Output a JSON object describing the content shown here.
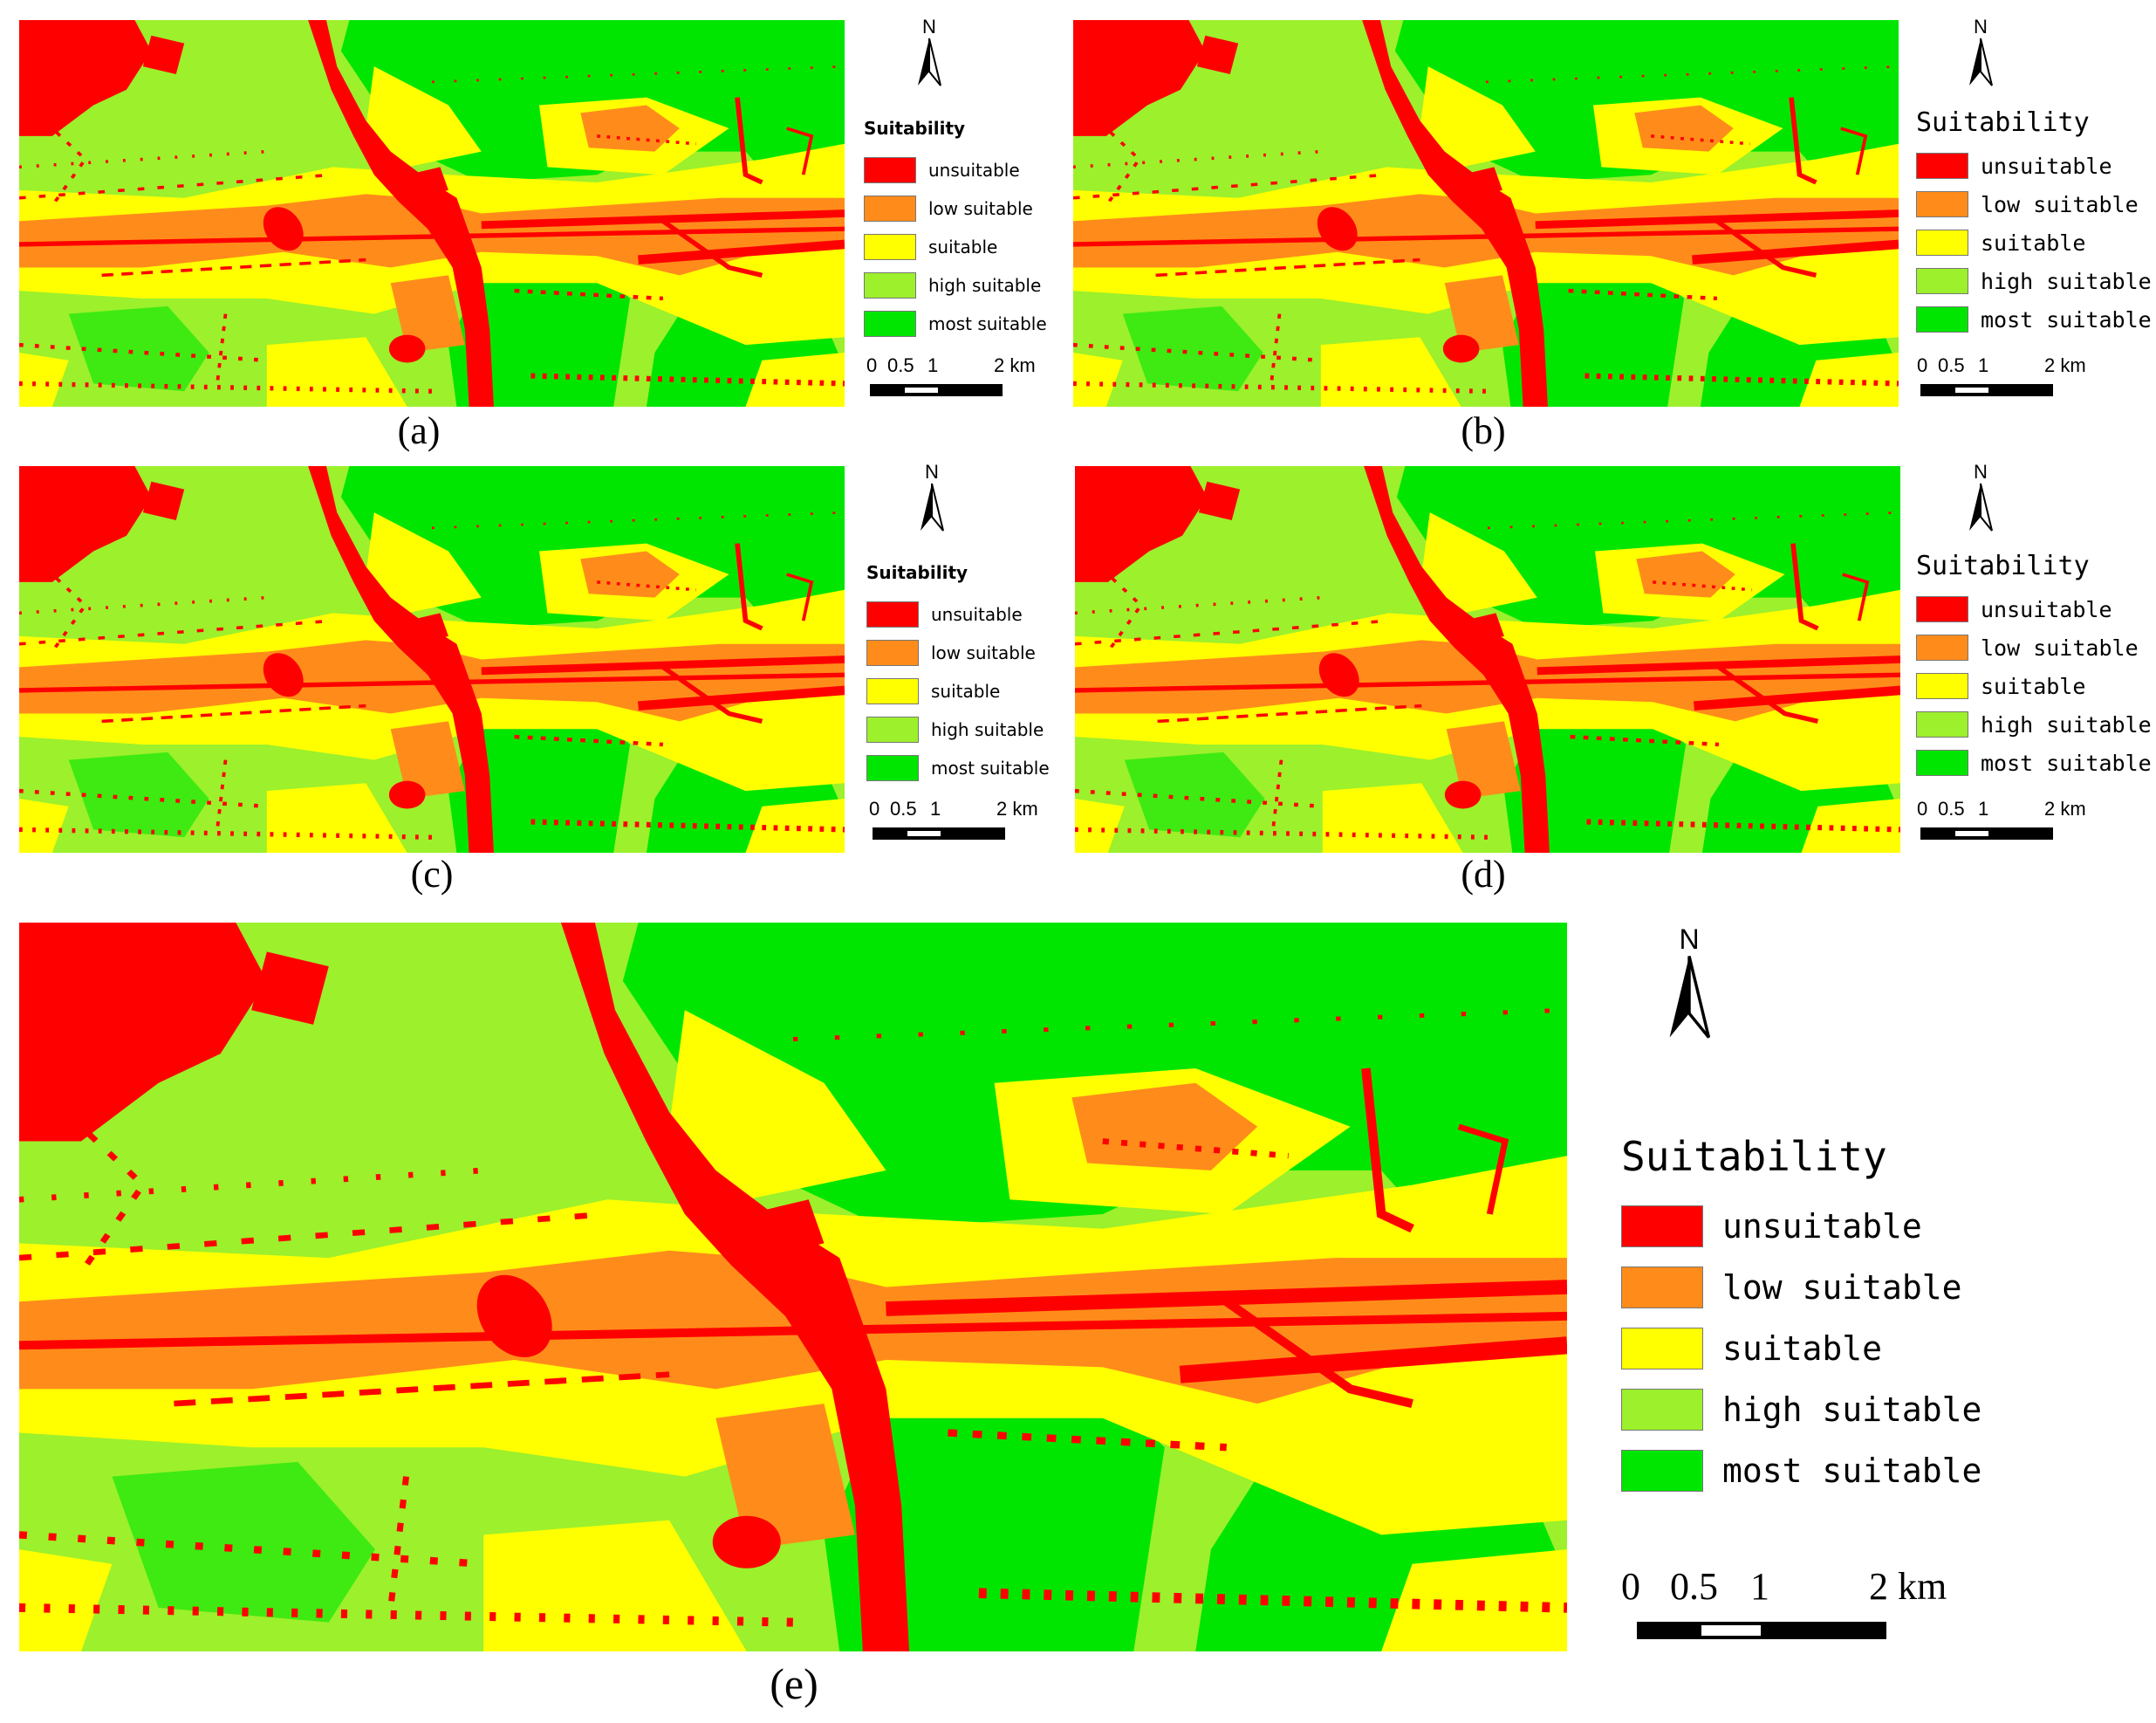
{
  "colors": {
    "unsuitable": "#ff0000",
    "low_suitable": "#ff8c1a",
    "suitable": "#ffff00",
    "high_suitable": "#9cf02c",
    "most_suitable": "#00e600"
  },
  "panels": [
    {
      "label": "(a)",
      "north": "N",
      "legend_title": "Suitability",
      "legend_style": "sans",
      "legend": [
        "unsuitable",
        "low suitable",
        "suitable",
        "high suitable",
        "most suitable"
      ],
      "scale": {
        "t0": "0",
        "t05": "0.5",
        "t1": "1",
        "t2": "2 km"
      }
    },
    {
      "label": "(b)",
      "north": "N",
      "legend_title": "Suitability",
      "legend_style": "mono",
      "legend": [
        "unsuitable",
        "low suitable",
        "suitable",
        "high suitable",
        "most suitable"
      ],
      "scale": {
        "t0": "0",
        "t05": "0.5",
        "t1": "1",
        "t2": "2 km"
      }
    },
    {
      "label": "(c)",
      "north": "N",
      "legend_title": "Suitability",
      "legend_style": "sans",
      "legend": [
        "unsuitable",
        "low suitable",
        "suitable",
        "high suitable",
        "most suitable"
      ],
      "scale": {
        "t0": "0",
        "t05": "0.5",
        "t1": "1",
        "t2": "2 km"
      }
    },
    {
      "label": "(d)",
      "north": "N",
      "legend_title": "Suitability",
      "legend_style": "mono",
      "legend": [
        "unsuitable",
        "low suitable",
        "suitable",
        "high suitable",
        "most suitable"
      ],
      "scale": {
        "t0": "0",
        "t05": "0.5",
        "t1": "1",
        "t2": "2 km"
      }
    },
    {
      "label": "(e)",
      "north": "N",
      "legend_title": "Suitability",
      "legend_style": "mono",
      "legend": [
        "unsuitable",
        "low suitable",
        "suitable",
        "high suitable",
        "most suitable"
      ],
      "scale": {
        "t0": "0",
        "t05": "0.5",
        "t1": "1",
        "t2": "2 km"
      }
    }
  ]
}
